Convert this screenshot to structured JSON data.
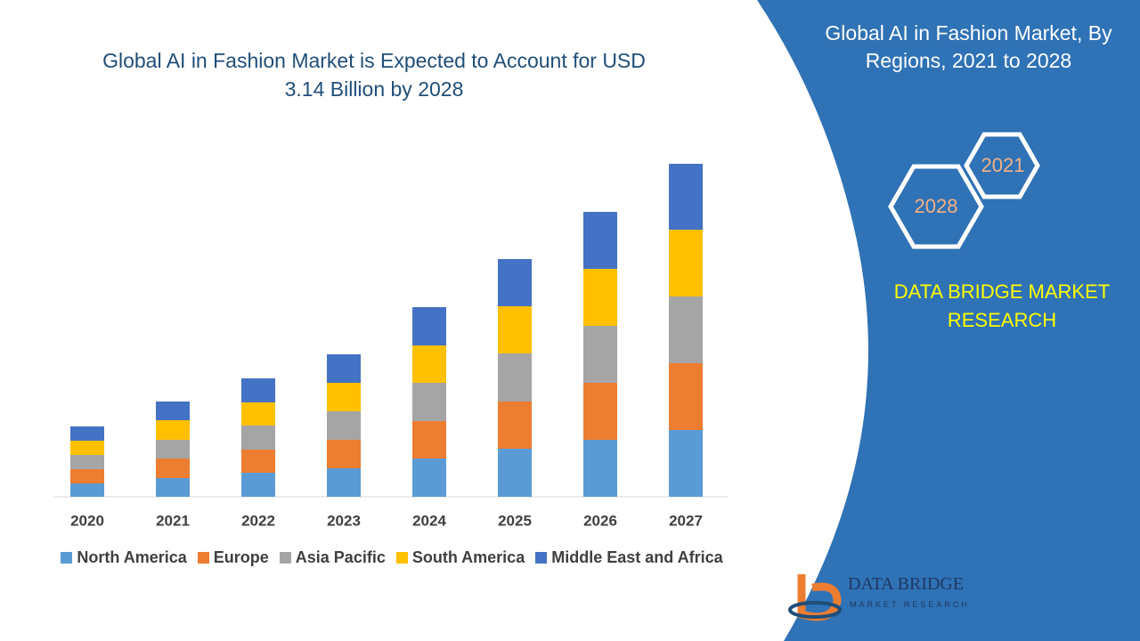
{
  "chart_data": {
    "type": "stacked-bar",
    "title": "Global AI in Fashion Market is Expected to Account for USD 3.14 Billion by 2028",
    "categories": [
      "2020",
      "2021",
      "2022",
      "2023",
      "2024",
      "2025",
      "2026",
      "2027"
    ],
    "series": [
      {
        "name": "North America",
        "color": "#5b9bd5",
        "values": [
          15,
          21,
          27,
          32,
          43,
          54,
          64,
          75
        ]
      },
      {
        "name": "Europe",
        "color": "#ed7d31",
        "values": [
          16,
          22,
          26,
          32,
          42,
          53,
          64,
          75
        ]
      },
      {
        "name": "Asia Pacific",
        "color": "#a5a5a5",
        "values": [
          16,
          21,
          27,
          32,
          43,
          54,
          64,
          75
        ]
      },
      {
        "name": "South America",
        "color": "#ffc000",
        "values": [
          16,
          22,
          26,
          32,
          42,
          53,
          64,
          75
        ]
      },
      {
        "name": "Middle East and Africa",
        "color": "#4472c4",
        "values": [
          16,
          21,
          27,
          32,
          43,
          53,
          64,
          74
        ]
      }
    ]
  },
  "sidebar": {
    "heading": "Global AI in Fashion Market, By Regions, 2021 to 2028",
    "hexagons": [
      "2021",
      "2028"
    ],
    "brand": "DATA BRIDGE MARKET RESEARCH",
    "logo": {
      "name": "DATA BRIDGE",
      "tagline": "MARKET RESEARCH"
    }
  }
}
